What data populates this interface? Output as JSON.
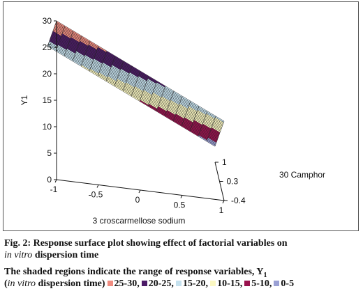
{
  "chart_data": {
    "type": "surface",
    "xlabel": "3 croscarmellose sodium",
    "ylabel": "Y1",
    "zlabel": "30 Camphor",
    "x_ticks": [
      "-1",
      "-0.5",
      "0",
      "0.5",
      "1"
    ],
    "y_ticks": [
      "0",
      "5",
      "10",
      "15",
      "20",
      "25",
      "30"
    ],
    "z_ticks": [
      "-0.4",
      "0.3",
      "1"
    ],
    "x_range": [
      -1,
      1
    ],
    "z_range": [
      -0.4,
      1
    ],
    "y_range": [
      0,
      30
    ],
    "grid": {
      "nx": 20,
      "nz": 20
    },
    "surface_corners": {
      "x_-1_z_-0.4": 30,
      "x_1_z_-0.4": 15,
      "x_-1_z_1": 18,
      "x_1_z_1": 3
    },
    "bands": [
      {
        "range": "25-30",
        "color": "#f08c80"
      },
      {
        "range": "20-25",
        "color": "#4b1a66"
      },
      {
        "range": "15-20",
        "color": "#c5e1ee"
      },
      {
        "range": "10-15",
        "color": "#fbf8c2"
      },
      {
        "range": "5-10",
        "color": "#99114d"
      },
      {
        "range": "0-5",
        "color": "#9aa0d4"
      }
    ]
  },
  "caption": {
    "line1": "Fig. 2: Response surface plot showing effect of factorial variables on",
    "line2_italic": "in vitro",
    "line2_rest": " dispersion time",
    "line3": "The shaded regions indicate the range of response variables, Y",
    "line3_sub": "1",
    "line4_open": "(",
    "line4_italic": "in vitro",
    "line4_rest": " dispersion time)"
  }
}
